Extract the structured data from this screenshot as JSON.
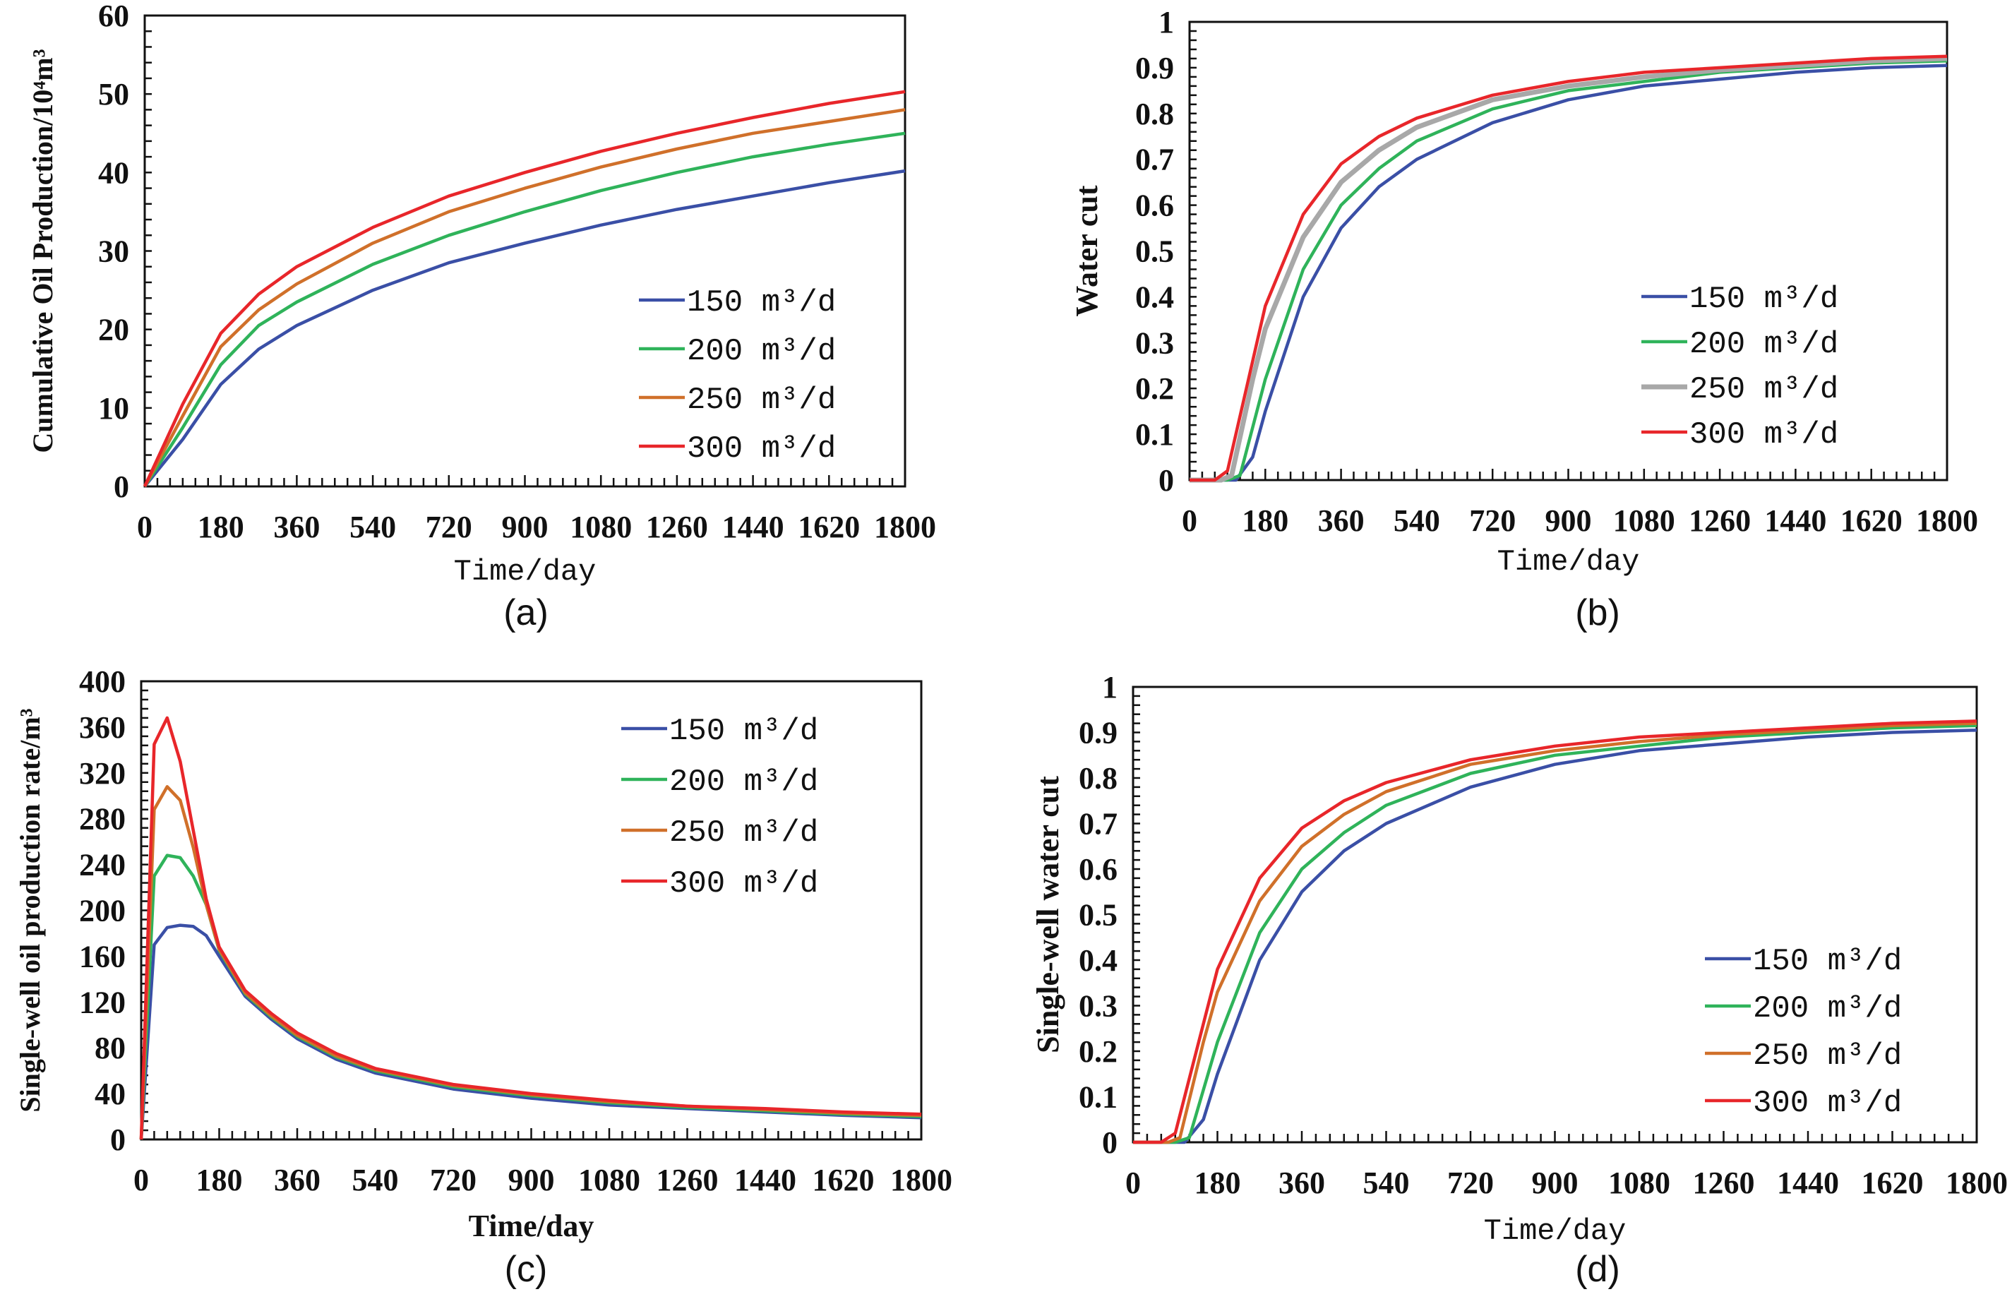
{
  "colors": {
    "150": "#3a4fa6",
    "200": "#2fb35a",
    "250": "#d0702a",
    "250gray": "#a8a8a8",
    "300": "#e8262a"
  },
  "chart_data": [
    {
      "id": "a",
      "caption": "(a)",
      "type": "line",
      "title": "",
      "xlabel": "Time/day",
      "ylabel": "Cumulative Oil Production/10⁴m³",
      "xlim": [
        0,
        1800
      ],
      "ylim": [
        0,
        60
      ],
      "xticks": [
        0,
        180,
        360,
        540,
        720,
        900,
        1080,
        1260,
        1440,
        1620,
        1800
      ],
      "yticks": [
        0,
        10,
        20,
        30,
        40,
        50,
        60
      ],
      "legend": "bottom-right",
      "grid": false,
      "series": [
        {
          "name": "150 m³/d",
          "color": "#3a4fa6",
          "x": [
            0,
            90,
            180,
            270,
            360,
            540,
            720,
            900,
            1080,
            1260,
            1440,
            1620,
            1800
          ],
          "y": [
            0,
            6,
            13,
            17.5,
            20.5,
            25,
            28.5,
            31,
            33.3,
            35.3,
            37,
            38.7,
            40.2
          ]
        },
        {
          "name": "200 m³/d",
          "color": "#2fb35a",
          "x": [
            0,
            90,
            180,
            270,
            360,
            540,
            720,
            900,
            1080,
            1260,
            1440,
            1620,
            1800
          ],
          "y": [
            0,
            7.5,
            15.5,
            20.5,
            23.5,
            28.3,
            32,
            35,
            37.7,
            40,
            42,
            43.6,
            45
          ]
        },
        {
          "name": "250 m³/d",
          "color": "#d0702a",
          "x": [
            0,
            90,
            180,
            270,
            360,
            540,
            720,
            900,
            1080,
            1260,
            1440,
            1620,
            1800
          ],
          "y": [
            0,
            9,
            17.8,
            22.5,
            25.8,
            31,
            35,
            38,
            40.7,
            43,
            45,
            46.5,
            48
          ]
        },
        {
          "name": "300 m³/d",
          "color": "#e8262a",
          "x": [
            0,
            90,
            180,
            270,
            360,
            540,
            720,
            900,
            1080,
            1260,
            1440,
            1620,
            1800
          ],
          "y": [
            0,
            10.5,
            19.5,
            24.5,
            28,
            33,
            37,
            40,
            42.7,
            45,
            47,
            48.8,
            50.3
          ]
        }
      ]
    },
    {
      "id": "b",
      "caption": "(b)",
      "type": "line",
      "title": "",
      "xlabel": "Time/day",
      "ylabel": "Water cut",
      "xlim": [
        0,
        1800
      ],
      "ylim": [
        0,
        1
      ],
      "xticks": [
        0,
        180,
        360,
        540,
        720,
        900,
        1080,
        1260,
        1440,
        1620,
        1800
      ],
      "yticks": [
        0,
        0.1,
        0.2,
        0.3,
        0.4,
        0.5,
        0.6,
        0.7,
        0.8,
        0.9,
        1
      ],
      "legend": "right",
      "grid": false,
      "series": [
        {
          "name": "150 m³/d",
          "color": "#3a4fa6",
          "x": [
            0,
            110,
            150,
            180,
            270,
            360,
            450,
            540,
            720,
            900,
            1080,
            1260,
            1440,
            1620,
            1800
          ],
          "y": [
            0,
            0,
            0.05,
            0.15,
            0.4,
            0.55,
            0.64,
            0.7,
            0.78,
            0.83,
            0.86,
            0.875,
            0.89,
            0.9,
            0.905
          ]
        },
        {
          "name": "200 m³/d",
          "color": "#2fb35a",
          "x": [
            0,
            90,
            120,
            180,
            270,
            360,
            450,
            540,
            720,
            900,
            1080,
            1260,
            1440,
            1620,
            1800
          ],
          "y": [
            0,
            0,
            0.01,
            0.22,
            0.46,
            0.6,
            0.68,
            0.74,
            0.81,
            0.85,
            0.87,
            0.89,
            0.9,
            0.91,
            0.915
          ]
        },
        {
          "name": "250 m³/d",
          "color": "#a8a8a8",
          "x": [
            0,
            75,
            100,
            150,
            180,
            270,
            360,
            450,
            540,
            720,
            900,
            1080,
            1260,
            1440,
            1620,
            1800
          ],
          "y": [
            0,
            0,
            0.01,
            0.22,
            0.33,
            0.53,
            0.65,
            0.72,
            0.77,
            0.83,
            0.86,
            0.88,
            0.895,
            0.905,
            0.915,
            0.92
          ]
        },
        {
          "name": "300 m³/d",
          "color": "#e8262a",
          "x": [
            0,
            60,
            90,
            135,
            180,
            270,
            360,
            450,
            540,
            720,
            900,
            1080,
            1260,
            1440,
            1620,
            1800
          ],
          "y": [
            0,
            0,
            0.02,
            0.2,
            0.38,
            0.58,
            0.69,
            0.75,
            0.79,
            0.84,
            0.87,
            0.89,
            0.9,
            0.91,
            0.92,
            0.925
          ]
        }
      ]
    },
    {
      "id": "c",
      "caption": "(c)",
      "type": "line",
      "title": "",
      "xlabel": "Time/day",
      "ylabel": "Single-well oil production rate/m³",
      "xlim": [
        0,
        1800
      ],
      "ylim": [
        0,
        400
      ],
      "xticks": [
        0,
        180,
        360,
        540,
        720,
        900,
        1080,
        1260,
        1440,
        1620,
        1800
      ],
      "yticks": [
        0,
        40,
        80,
        120,
        160,
        200,
        240,
        280,
        320,
        360,
        400
      ],
      "legend": "top-right",
      "grid": false,
      "series": [
        {
          "name": "150 m³/d",
          "color": "#3a4fa6",
          "x": [
            0,
            30,
            60,
            90,
            120,
            150,
            180,
            240,
            300,
            360,
            450,
            540,
            720,
            900,
            1080,
            1260,
            1440,
            1620,
            1800
          ],
          "y": [
            0,
            170,
            185,
            187,
            186,
            178,
            160,
            125,
            105,
            88,
            70,
            58,
            44,
            36,
            30,
            27,
            24,
            21,
            19
          ]
        },
        {
          "name": "200 m³/d",
          "color": "#2fb35a",
          "x": [
            0,
            30,
            60,
            90,
            120,
            150,
            180,
            240,
            300,
            360,
            450,
            540,
            720,
            900,
            1080,
            1260,
            1440,
            1620,
            1800
          ],
          "y": [
            0,
            230,
            248,
            246,
            230,
            205,
            165,
            127,
            107,
            90,
            72,
            60,
            46,
            38,
            32,
            28,
            25,
            22,
            20
          ]
        },
        {
          "name": "250 m³/d",
          "color": "#d0702a",
          "x": [
            0,
            30,
            60,
            90,
            120,
            150,
            180,
            240,
            300,
            360,
            450,
            540,
            720,
            900,
            1080,
            1260,
            1440,
            1620,
            1800
          ],
          "y": [
            0,
            288,
            308,
            296,
            255,
            205,
            166,
            128,
            108,
            91,
            73,
            61,
            47,
            39,
            33,
            29,
            26,
            23,
            21
          ]
        },
        {
          "name": "300 m³/d",
          "color": "#e8262a",
          "x": [
            0,
            30,
            60,
            90,
            120,
            150,
            180,
            240,
            300,
            360,
            450,
            540,
            720,
            900,
            1080,
            1260,
            1440,
            1620,
            1800
          ],
          "y": [
            0,
            345,
            368,
            330,
            270,
            210,
            168,
            130,
            110,
            93,
            75,
            62,
            48,
            40,
            34,
            29,
            27,
            24,
            22
          ]
        }
      ]
    },
    {
      "id": "d",
      "caption": "(d)",
      "type": "line",
      "title": "",
      "xlabel": "Time/day",
      "ylabel": "Single-well water cut",
      "xlim": [
        0,
        1800
      ],
      "ylim": [
        0,
        1
      ],
      "xticks": [
        0,
        180,
        360,
        540,
        720,
        900,
        1080,
        1260,
        1440,
        1620,
        1800
      ],
      "yticks": [
        0,
        0.1,
        0.2,
        0.3,
        0.4,
        0.5,
        0.6,
        0.7,
        0.8,
        0.9,
        1
      ],
      "legend": "bottom-right",
      "grid": false,
      "series": [
        {
          "name": "150 m³/d",
          "color": "#3a4fa6",
          "x": [
            0,
            110,
            150,
            180,
            270,
            360,
            450,
            540,
            720,
            900,
            1080,
            1260,
            1440,
            1620,
            1800
          ],
          "y": [
            0,
            0,
            0.05,
            0.15,
            0.4,
            0.55,
            0.64,
            0.7,
            0.78,
            0.83,
            0.86,
            0.875,
            0.89,
            0.9,
            0.905
          ]
        },
        {
          "name": "200 m³/d",
          "color": "#2fb35a",
          "x": [
            0,
            90,
            120,
            180,
            270,
            360,
            450,
            540,
            720,
            900,
            1080,
            1260,
            1440,
            1620,
            1800
          ],
          "y": [
            0,
            0,
            0.01,
            0.22,
            0.46,
            0.6,
            0.68,
            0.74,
            0.81,
            0.85,
            0.87,
            0.89,
            0.9,
            0.91,
            0.915
          ]
        },
        {
          "name": "250 m³/d",
          "color": "#d0702a",
          "x": [
            0,
            75,
            100,
            150,
            180,
            270,
            360,
            450,
            540,
            720,
            900,
            1080,
            1260,
            1440,
            1620,
            1800
          ],
          "y": [
            0,
            0,
            0.01,
            0.22,
            0.33,
            0.53,
            0.65,
            0.72,
            0.77,
            0.83,
            0.86,
            0.88,
            0.895,
            0.905,
            0.915,
            0.92
          ]
        },
        {
          "name": "300 m³/d",
          "color": "#e8262a",
          "x": [
            0,
            60,
            90,
            135,
            180,
            270,
            360,
            450,
            540,
            720,
            900,
            1080,
            1260,
            1440,
            1620,
            1800
          ],
          "y": [
            0,
            0,
            0.02,
            0.2,
            0.38,
            0.58,
            0.69,
            0.75,
            0.79,
            0.84,
            0.87,
            0.89,
            0.9,
            0.91,
            0.92,
            0.925
          ]
        }
      ]
    }
  ]
}
